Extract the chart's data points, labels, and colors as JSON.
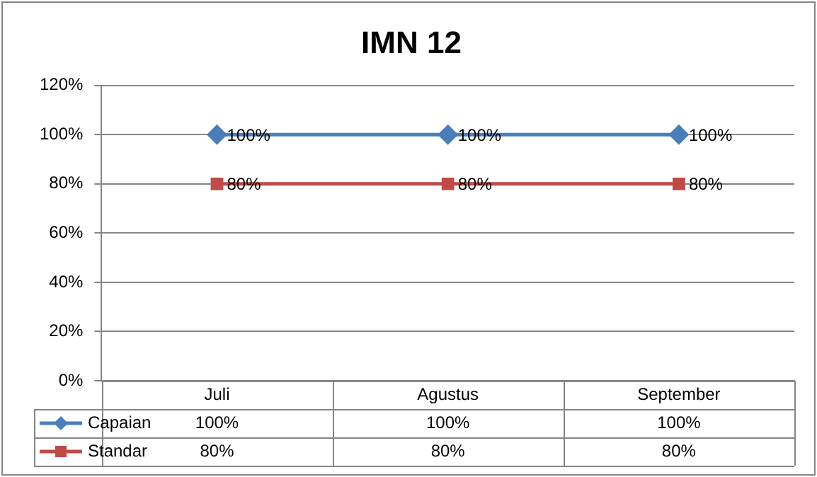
{
  "chart_data": {
    "type": "line",
    "title": "IMN 12",
    "categories": [
      "Juli",
      "Agustus",
      "September"
    ],
    "series": [
      {
        "name": "Capaian",
        "color": "#4a7ebb",
        "values": [
          100,
          100,
          100
        ],
        "value_labels": [
          "100%",
          "100%",
          "100%"
        ],
        "marker": "diamond"
      },
      {
        "name": "Standar",
        "color": "#be4b48",
        "values": [
          80,
          80,
          80
        ],
        "value_labels": [
          "80%",
          "80%",
          "80%"
        ],
        "marker": "square"
      }
    ],
    "ylim": [
      0,
      120
    ],
    "yticks": [
      {
        "value": 0,
        "label": "0%"
      },
      {
        "value": 20,
        "label": "20%"
      },
      {
        "value": 40,
        "label": "40%"
      },
      {
        "value": 60,
        "label": "60%"
      },
      {
        "value": 80,
        "label": "80%"
      },
      {
        "value": 100,
        "label": "100%"
      },
      {
        "value": 120,
        "label": "120%"
      }
    ],
    "grid": "y",
    "legend": "bottom",
    "line_style": "solid"
  }
}
